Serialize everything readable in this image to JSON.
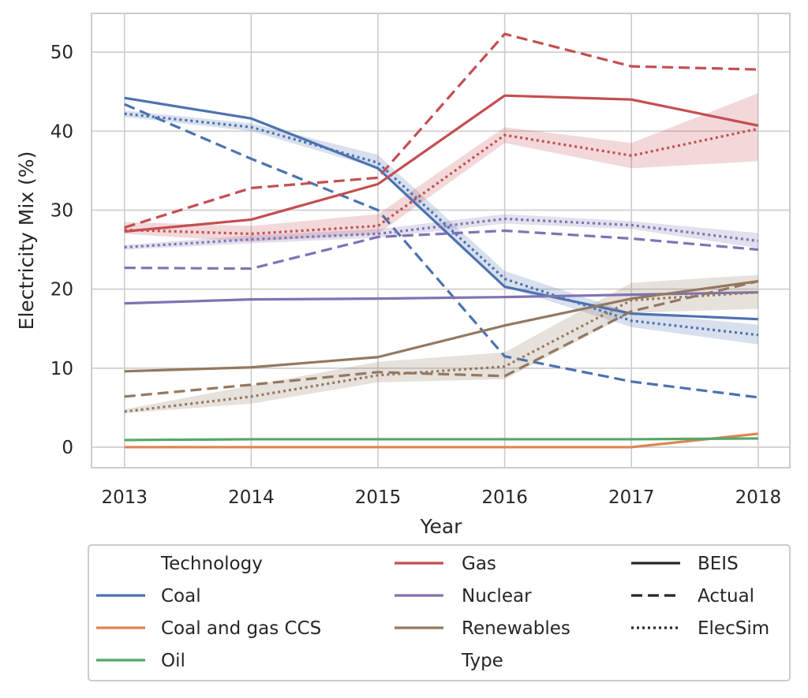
{
  "chart_data": {
    "type": "line",
    "title": "",
    "xlabel": "Year",
    "ylabel": "Electricity Mix (%)",
    "x": [
      2013,
      2014,
      2015,
      2016,
      2017,
      2018
    ],
    "xlim": [
      2012.74,
      2018.25
    ],
    "ylim": [
      -2.6,
      54.9
    ],
    "yticks": [
      0,
      10,
      20,
      30,
      40,
      50
    ],
    "grid": true,
    "legend_position": "below",
    "colors": {
      "Coal": "#4c72b0",
      "Coal and gas CCS": "#dd8452",
      "Oil": "#55a868",
      "Gas": "#c44e52",
      "Nuclear": "#8172b3",
      "Renewables": "#937860"
    },
    "series": [
      {
        "technology": "Coal",
        "type": "BEIS",
        "values": [
          44.2,
          41.6,
          35.3,
          20.3,
          16.9,
          16.2
        ]
      },
      {
        "technology": "Coal",
        "type": "Actual",
        "values": [
          43.4,
          36.5,
          30.0,
          11.5,
          8.3,
          6.3
        ]
      },
      {
        "technology": "Coal",
        "type": "ElecSim",
        "values": [
          42.2,
          40.5,
          36.0,
          21.3,
          16.0,
          14.2
        ],
        "band": [
          [
            41.8,
            42.6
          ],
          [
            40.0,
            41.0
          ],
          [
            35.3,
            37.0
          ],
          [
            20.3,
            22.3
          ],
          [
            15.2,
            17.0
          ],
          [
            13.0,
            15.5
          ]
        ]
      },
      {
        "technology": "Coal and gas CCS",
        "type": "BEIS",
        "values": [
          0.0,
          0.0,
          0.0,
          0.0,
          0.0,
          1.7
        ]
      },
      {
        "technology": "Oil",
        "type": "BEIS",
        "values": [
          0.9,
          1.0,
          1.0,
          1.0,
          1.0,
          1.1
        ]
      },
      {
        "technology": "Gas",
        "type": "BEIS",
        "values": [
          27.3,
          28.8,
          33.3,
          44.5,
          44.0,
          40.7
        ]
      },
      {
        "technology": "Gas",
        "type": "Actual",
        "values": [
          27.8,
          32.8,
          34.1,
          52.3,
          48.2,
          47.8
        ]
      },
      {
        "technology": "Gas",
        "type": "ElecSim",
        "values": [
          27.5,
          27.0,
          28.0,
          39.5,
          36.9,
          40.3
        ],
        "band": [
          [
            27.0,
            28.5
          ],
          [
            26.0,
            28.0
          ],
          [
            27.0,
            29.5
          ],
          [
            38.5,
            40.5
          ],
          [
            35.3,
            38.5
          ],
          [
            36.2,
            44.8
          ]
        ]
      },
      {
        "technology": "Nuclear",
        "type": "BEIS",
        "values": [
          18.2,
          18.7,
          18.8,
          19.0,
          19.3,
          19.6
        ]
      },
      {
        "technology": "Nuclear",
        "type": "Actual",
        "values": [
          22.7,
          22.6,
          26.6,
          27.4,
          26.4,
          25.0
        ]
      },
      {
        "technology": "Nuclear",
        "type": "ElecSim",
        "values": [
          25.3,
          26.3,
          27.0,
          28.9,
          28.1,
          26.1
        ],
        "band": [
          [
            25.0,
            25.6
          ],
          [
            25.8,
            26.8
          ],
          [
            26.5,
            27.6
          ],
          [
            28.3,
            29.5
          ],
          [
            27.6,
            28.6
          ],
          [
            25.2,
            27.1
          ]
        ]
      },
      {
        "technology": "Renewables",
        "type": "BEIS",
        "values": [
          9.6,
          10.1,
          11.4,
          15.4,
          18.8,
          21.0
        ]
      },
      {
        "technology": "Renewables",
        "type": "Actual",
        "values": [
          6.4,
          7.9,
          9.5,
          9.0,
          17.2,
          21.0
        ]
      },
      {
        "technology": "Renewables",
        "type": "ElecSim",
        "values": [
          4.5,
          6.4,
          9.1,
          10.2,
          18.6,
          19.6
        ],
        "band": [
          [
            4.3,
            4.8
          ],
          [
            5.5,
            7.8
          ],
          [
            8.2,
            10.8
          ],
          [
            8.6,
            12.0
          ],
          [
            17.0,
            20.8
          ],
          [
            17.5,
            21.8
          ]
        ]
      }
    ],
    "legend": {
      "technology_title": "Technology",
      "type_title": "Type",
      "technologies": [
        "Coal",
        "Coal and gas CCS",
        "Oil",
        "Gas",
        "Nuclear",
        "Renewables"
      ],
      "types": [
        "BEIS",
        "Actual",
        "ElecSim"
      ]
    }
  }
}
